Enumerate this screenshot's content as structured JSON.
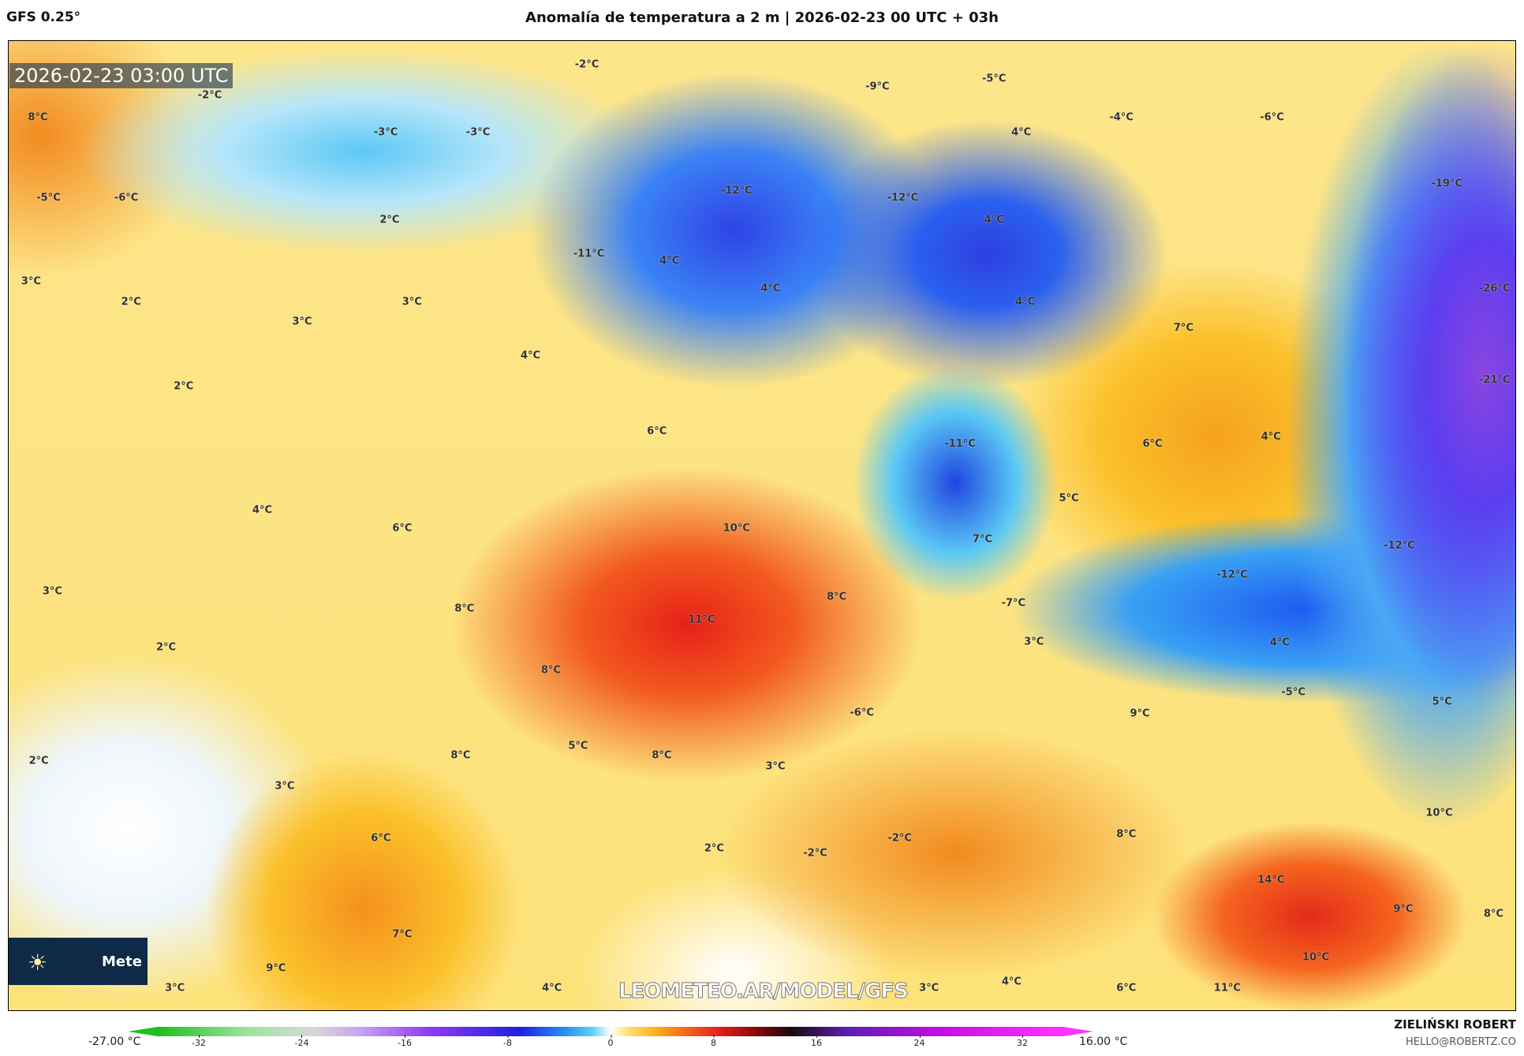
{
  "header": {
    "model": "GFS 0.25°",
    "title": "Anomalía de temperatura a 2 m | 2026-02-23 00 UTC + 03h"
  },
  "map": {
    "timestamp": "2026-02-23 03:00 UTC",
    "watermark": "LEOMETEO.AR/MODEL/GFS",
    "logo": {
      "icon": "sun-icon",
      "text": "Meteo"
    },
    "labels": [
      "-2°C",
      "-2°C",
      "8°C",
      "-3°C",
      "-3°C",
      "-5°C",
      "-9°C",
      "-4°C",
      "-6°C",
      "4°C",
      "-19°C",
      "-5°C",
      "-6°C",
      "-12°C",
      "-12°C",
      "2°C",
      "4°C",
      "-11°C",
      "4°C",
      "4°C",
      "-26°C",
      "3°C",
      "2°C",
      "3°C",
      "3°C",
      "4°C",
      "7°C",
      "4°C",
      "-21°C",
      "2°C",
      "6°C",
      "-11°C",
      "6°C",
      "4°C",
      "4°C",
      "5°C",
      "6°C",
      "10°C",
      "7°C",
      "-12°C",
      "3°C",
      "-12°C",
      "8°C",
      "8°C",
      "-7°C",
      "11°C",
      "2°C",
      "3°C",
      "4°C",
      "8°C",
      "-5°C",
      "5°C",
      "-6°C",
      "9°C",
      "5°C",
      "8°C",
      "8°C",
      "2°C",
      "3°C",
      "3°C",
      "10°C",
      "6°C",
      "-2°C",
      "8°C",
      "2°C",
      "-2°C",
      "14°C",
      "9°C",
      "8°C",
      "7°C",
      "9°C",
      "10°C",
      "3°C",
      "4°C",
      "3°C",
      "4°C",
      "6°C",
      "11°C"
    ]
  },
  "colorbar": {
    "min_label": "-27.00 °C",
    "max_label": "16.00 °C",
    "ticks": [
      "-32",
      "-24",
      "-16",
      "-8",
      "0",
      "8",
      "16",
      "24",
      "32"
    ]
  },
  "credits": {
    "author": "ZIELIŃSKI ROBERT",
    "email": "HELLO@ROBERTZ.CO"
  }
}
